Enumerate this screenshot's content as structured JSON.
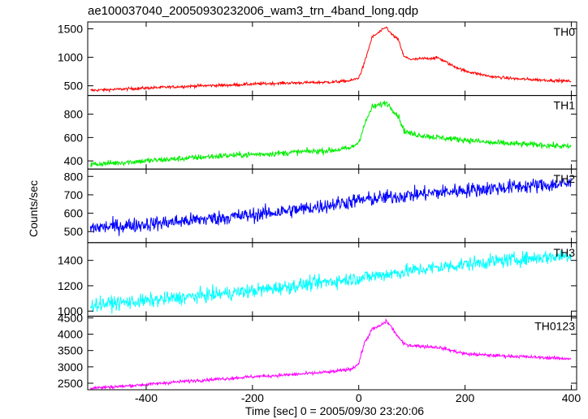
{
  "chart_data": {
    "type": "line",
    "title": "ae100037040_20050930232006_wam3_trn_4band_long.qdp",
    "xlabel": "Time [sec] 0 = 2005/09/30 23:20:06",
    "ylabel": "Counts/sec",
    "xlim": [
      -510,
      410
    ],
    "xticks": [
      -400,
      -200,
      0,
      200,
      400
    ],
    "grid": false,
    "legend": "none",
    "panels": [
      {
        "label": "TH0",
        "color": "#ff0000",
        "ylim": [
          330,
          1620
        ],
        "yticks": [
          500,
          1000,
          1500
        ],
        "noise": 25,
        "x": [
          -505,
          -450,
          -400,
          -350,
          -300,
          -250,
          -200,
          -150,
          -100,
          -50,
          -15,
          0,
          10,
          25,
          40,
          52,
          60,
          75,
          85,
          100,
          125,
          150,
          175,
          200,
          250,
          300,
          350,
          400
        ],
        "y": [
          420,
          440,
          460,
          480,
          500,
          510,
          530,
          545,
          555,
          565,
          590,
          640,
          880,
          1350,
          1450,
          1530,
          1420,
          1300,
          1010,
          960,
          980,
          990,
          860,
          760,
          660,
          620,
          600,
          580
        ]
      },
      {
        "label": "TH1",
        "color": "#00ee00",
        "ylim": [
          330,
          960
        ],
        "yticks": [
          400,
          600,
          800
        ],
        "noise": 25,
        "x": [
          -505,
          -450,
          -400,
          -350,
          -300,
          -250,
          -200,
          -150,
          -100,
          -50,
          -15,
          0,
          10,
          25,
          40,
          52,
          60,
          75,
          85,
          100,
          150,
          200,
          250,
          300,
          350,
          400
        ],
        "y": [
          370,
          385,
          400,
          415,
          430,
          445,
          455,
          465,
          480,
          490,
          510,
          560,
          700,
          860,
          880,
          900,
          860,
          780,
          660,
          630,
          600,
          580,
          555,
          545,
          535,
          520
        ]
      },
      {
        "label": "TH2",
        "color": "#0000ff",
        "ylim": [
          440,
          840
        ],
        "yticks": [
          500,
          600,
          700,
          800
        ],
        "noise": 40,
        "x": [
          -505,
          -400,
          -300,
          -200,
          -100,
          0,
          100,
          200,
          300,
          400
        ],
        "y": [
          520,
          540,
          565,
          590,
          625,
          670,
          700,
          725,
          745,
          760
        ]
      },
      {
        "label": "TH3",
        "color": "#00ffff",
        "ylim": [
          960,
          1540
        ],
        "yticks": [
          1000,
          1200,
          1400
        ],
        "noise": 55,
        "x": [
          -505,
          -400,
          -300,
          -200,
          -100,
          0,
          100,
          200,
          300,
          400
        ],
        "y": [
          1050,
          1080,
          1120,
          1160,
          1210,
          1260,
          1320,
          1370,
          1410,
          1440
        ]
      },
      {
        "label": "TH0123",
        "color": "#ff00ff",
        "ylim": [
          2300,
          4550
        ],
        "yticks": [
          2500,
          3000,
          3500,
          4000,
          4500
        ],
        "noise": 50,
        "x": [
          -505,
          -450,
          -400,
          -350,
          -300,
          -250,
          -200,
          -150,
          -100,
          -50,
          -15,
          0,
          10,
          25,
          40,
          52,
          60,
          75,
          85,
          100,
          150,
          200,
          250,
          300,
          350,
          400
        ],
        "y": [
          2350,
          2400,
          2460,
          2530,
          2590,
          2640,
          2700,
          2740,
          2790,
          2850,
          2930,
          3100,
          3700,
          4150,
          4250,
          4400,
          4250,
          3900,
          3700,
          3650,
          3600,
          3400,
          3350,
          3320,
          3280,
          3250
        ]
      }
    ]
  }
}
